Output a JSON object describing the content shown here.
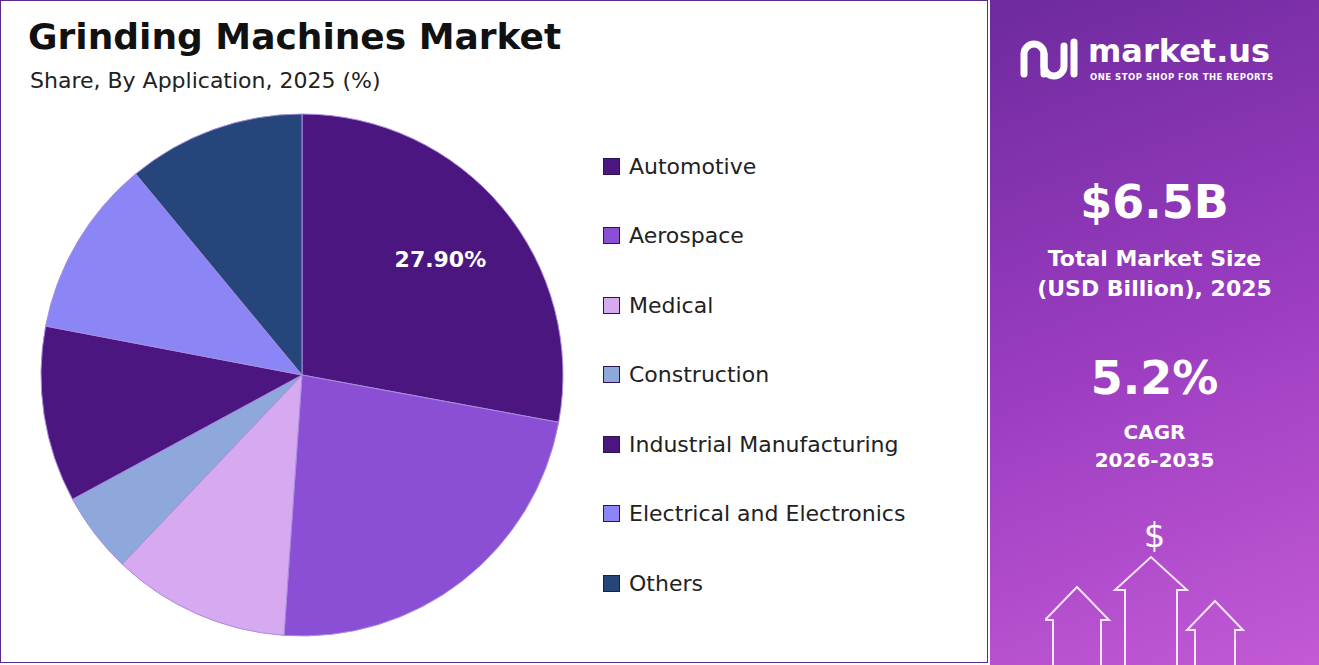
{
  "chart_data": {
    "type": "pie",
    "title": "Grinding Machines Market",
    "subtitle": "Share, By Application, 2025 (%)",
    "categories": [
      "Automotive",
      "Aerospace",
      "Medical",
      "Construction",
      "Industrial Manufacturing",
      "Electrical and Electronics",
      "Others"
    ],
    "values": [
      27.9,
      23.2,
      11,
      5,
      10.9,
      11,
      11
    ],
    "value_labels": [
      "27.90%",
      null,
      null,
      null,
      null,
      null,
      null
    ],
    "colors": [
      "#4b167f",
      "#8a4fd4",
      "#d6a9f0",
      "#8fa8dc",
      "#4b167f",
      "#8b85f5",
      "#26457a"
    ],
    "legend": "right"
  },
  "side_panel": {
    "brand": "market.us",
    "tagline": "ONE STOP SHOP FOR THE REPORTS",
    "metrics": [
      {
        "value": "$6.5B",
        "label_lines": [
          "Total Market Size",
          "(USD Billion), 2025"
        ]
      },
      {
        "value": "5.2%",
        "label_lines": [
          "CAGR",
          "2026-2035"
        ]
      }
    ],
    "icon": "$"
  }
}
